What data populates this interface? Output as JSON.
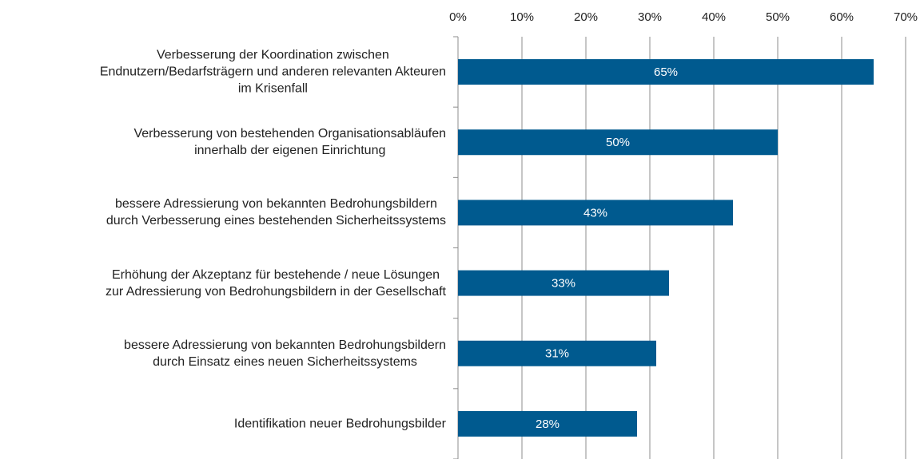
{
  "chart_data": {
    "type": "barh",
    "categories": [
      "Verbesserung der Koordination zwischen\nEndnutzern/Bedarfsträgern und anderen relevanten Akteuren\nim Krisenfall",
      "Verbesserung von bestehenden Organisationsabläufen\ninnerhalb der eigenen Einrichtung",
      "bessere Adressierung von bekannten Bedrohungsbildern\ndurch Verbesserung eines bestehenden Sicherheitssystems",
      "Erhöhung der Akzeptanz für bestehende / neue Lösungen\nzur Adressierung von Bedrohungsbildern in der Gesellschaft",
      "bessere Adressierung von bekannten Bedrohungsbildern\ndurch Einsatz eines neuen Sicherheitssystems",
      "Identifikation neuer Bedrohungsbilder"
    ],
    "values": [
      65,
      50,
      43,
      33,
      31,
      28
    ],
    "value_labels": [
      "65%",
      "50%",
      "43%",
      "33%",
      "31%",
      "28%"
    ],
    "color": "#005a8f",
    "xlim": [
      0,
      70
    ],
    "xticks": [
      {
        "value": 0,
        "label": "0%"
      },
      {
        "value": 10,
        "label": "10%"
      },
      {
        "value": 20,
        "label": "20%"
      },
      {
        "value": 30,
        "label": "30%"
      },
      {
        "value": 40,
        "label": "40%"
      },
      {
        "value": 50,
        "label": "50%"
      },
      {
        "value": 60,
        "label": "60%"
      },
      {
        "value": 70,
        "label": "70%"
      }
    ],
    "grid": true
  }
}
